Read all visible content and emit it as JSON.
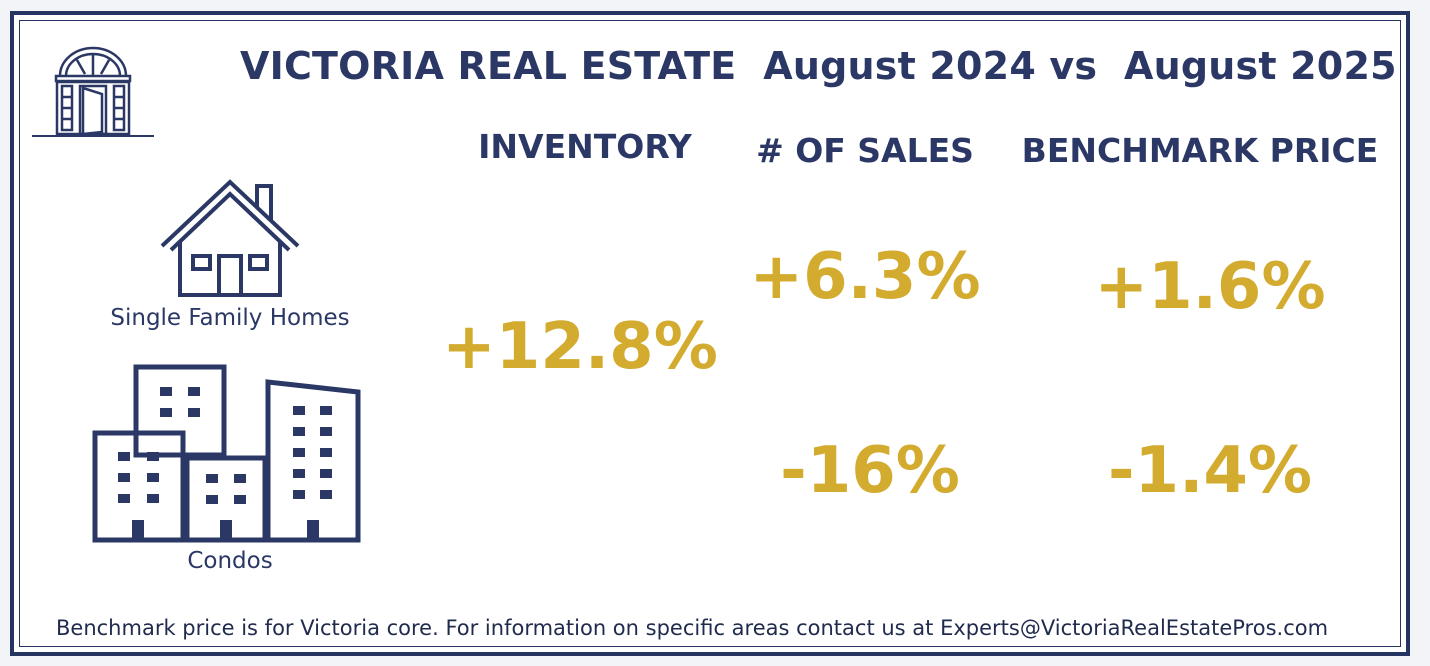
{
  "title": "VICTORIA REAL ESTATE  August 2024 vs  August 2025",
  "columns": {
    "inventory": "INVENTORY",
    "sales": "# OF SALES",
    "benchmark": "BENCHMARK PRICE"
  },
  "categories": {
    "single_family": "Single Family Homes",
    "condos": "Condos"
  },
  "stats": {
    "inventory": "+12.8%",
    "sales_single_family": "+6.3%",
    "sales_condos": "-16%",
    "benchmark_single_family": "+1.6%",
    "benchmark_condos": "-1.4%"
  },
  "footer": "Benchmark price is for Victoria core. For information on specific areas contact us at Experts@VictoriaRealEstatePros.com",
  "colors": {
    "navy": "#2b3865",
    "gold": "#d3ab2f",
    "border": "#253461"
  },
  "icons": {
    "logo": "doorway-icon",
    "single_family": "house-icon",
    "condos": "buildings-icon"
  }
}
